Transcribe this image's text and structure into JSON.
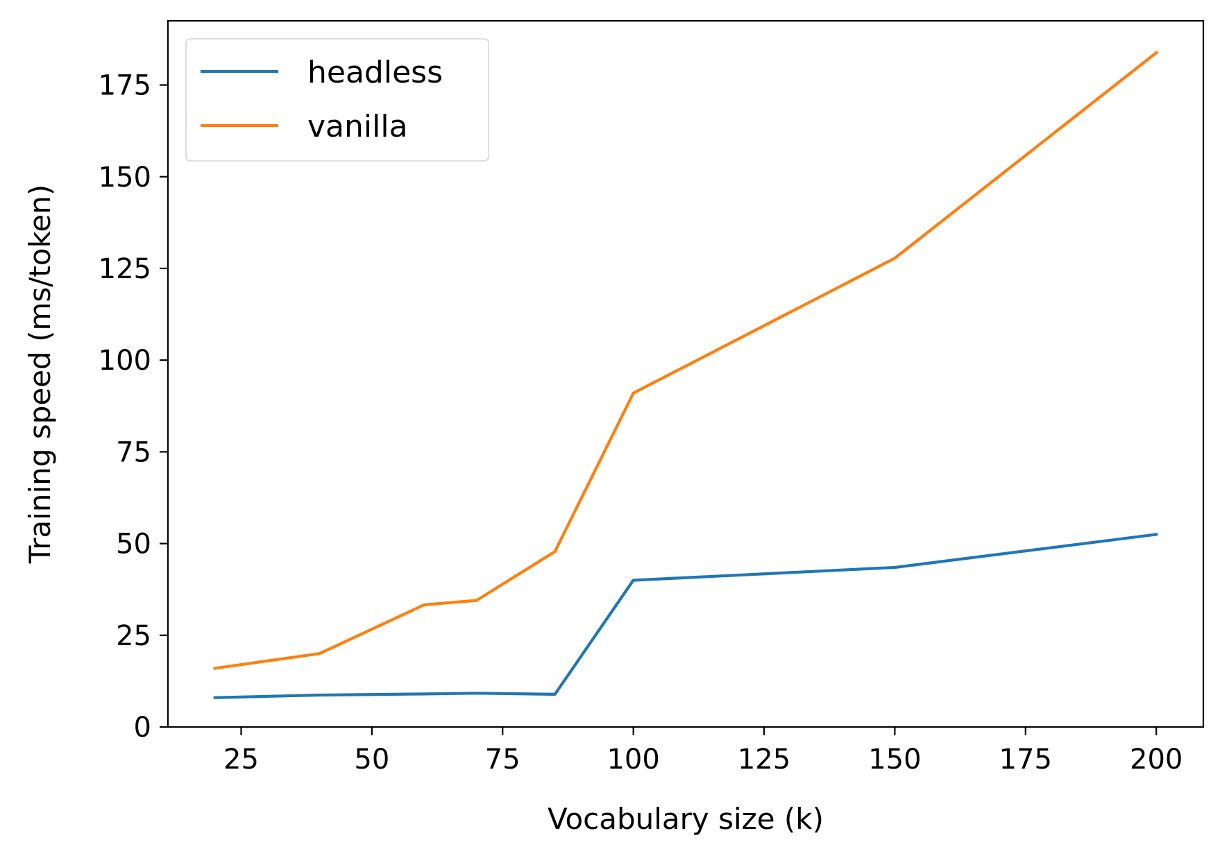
{
  "chart_data": {
    "type": "line",
    "title": "",
    "xlabel": "Vocabulary size (k)",
    "ylabel": "Training speed (ms/token)",
    "xlim": [
      11,
      209
    ],
    "ylim": [
      0,
      192.5
    ],
    "xticks": [
      25,
      50,
      75,
      100,
      125,
      150,
      175,
      200
    ],
    "yticks": [
      0,
      25,
      50,
      75,
      100,
      125,
      150,
      175
    ],
    "grid": false,
    "legend": "upper-left",
    "x": [
      20,
      40,
      60,
      70,
      85,
      100,
      150,
      200
    ],
    "series": [
      {
        "name": "headless",
        "color": "#1f77b4",
        "values": [
          8.0,
          8.7,
          9.0,
          9.2,
          8.9,
          40.0,
          43.5,
          52.5
        ]
      },
      {
        "name": "vanilla",
        "color": "#ff7f0e",
        "values": [
          16.0,
          20.0,
          33.3,
          34.5,
          47.8,
          91.0,
          127.8,
          183.8
        ]
      }
    ]
  }
}
